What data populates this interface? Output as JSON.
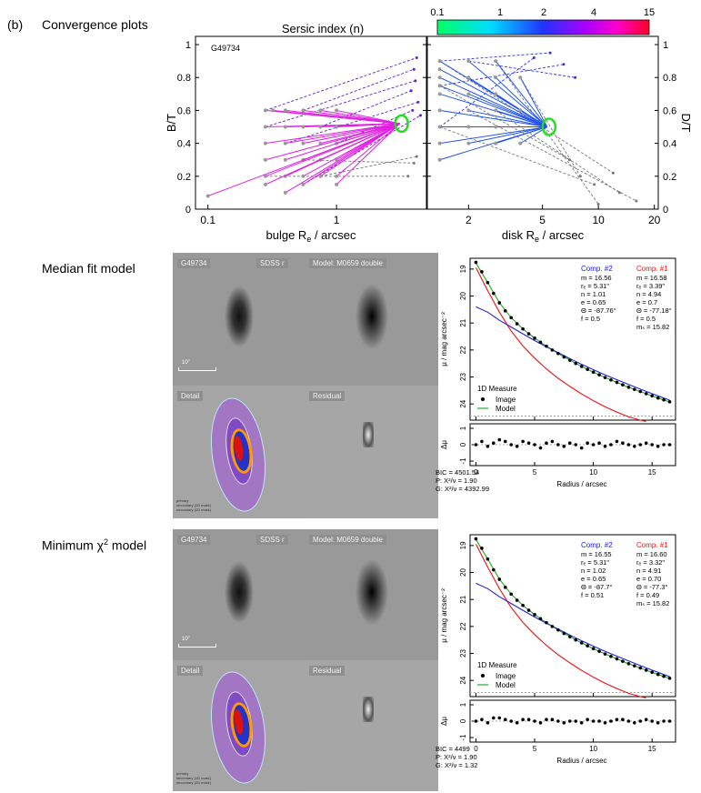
{
  "figure_label": "(b)",
  "sections": {
    "convergence": "Convergence plots",
    "median": "Median fit model",
    "minimum_prefix": "Minimum χ",
    "minimum_sup": "2",
    "minimum_suffix": " model"
  },
  "colorbar": {
    "title": "Sersic index (n)",
    "ticks": [
      "0.1",
      "1",
      "2",
      "4",
      "15"
    ]
  },
  "chart_data": [
    {
      "type": "scatter",
      "panel": "left",
      "galaxy": "G49734",
      "xlabel_main": "bulge R",
      "xlabel_sub": "e",
      "xlabel_tail": " / arcsec",
      "ylabel": "B/T",
      "xscale": "log",
      "xlim": [
        0.08,
        5
      ],
      "ylim": [
        0,
        1.05
      ],
      "xticks": [
        "0.1",
        "1"
      ],
      "yticks": [
        "0",
        "0.2",
        "0.4",
        "0.6",
        "0.8",
        "1"
      ],
      "converged_point": {
        "x": 3.1,
        "y": 0.52
      },
      "start_points": [
        {
          "x": 0.28,
          "y": 0.6
        },
        {
          "x": 0.32,
          "y": 0.6
        },
        {
          "x": 0.4,
          "y": 0.6
        },
        {
          "x": 0.55,
          "y": 0.6
        },
        {
          "x": 0.75,
          "y": 0.6
        },
        {
          "x": 1.0,
          "y": 0.6
        },
        {
          "x": 0.28,
          "y": 0.5
        },
        {
          "x": 0.4,
          "y": 0.5
        },
        {
          "x": 0.55,
          "y": 0.5
        },
        {
          "x": 0.75,
          "y": 0.5
        },
        {
          "x": 1.0,
          "y": 0.5
        },
        {
          "x": 0.28,
          "y": 0.4
        },
        {
          "x": 0.4,
          "y": 0.4
        },
        {
          "x": 0.55,
          "y": 0.4
        },
        {
          "x": 0.75,
          "y": 0.4
        },
        {
          "x": 1.0,
          "y": 0.4
        },
        {
          "x": 0.28,
          "y": 0.3
        },
        {
          "x": 0.4,
          "y": 0.3
        },
        {
          "x": 0.55,
          "y": 0.3
        },
        {
          "x": 0.75,
          "y": 0.3
        },
        {
          "x": 1.0,
          "y": 0.3
        },
        {
          "x": 0.28,
          "y": 0.2
        },
        {
          "x": 0.4,
          "y": 0.2
        },
        {
          "x": 0.55,
          "y": 0.2
        },
        {
          "x": 0.75,
          "y": 0.2
        },
        {
          "x": 1.0,
          "y": 0.2
        },
        {
          "x": 0.28,
          "y": 0.15
        },
        {
          "x": 0.55,
          "y": 0.15
        },
        {
          "x": 1.0,
          "y": 0.15
        },
        {
          "x": 0.1,
          "y": 0.08
        },
        {
          "x": 0.4,
          "y": 0.1
        }
      ],
      "divergent_ends": [
        {
          "x": 4.2,
          "y": 0.92
        },
        {
          "x": 4.0,
          "y": 0.85
        },
        {
          "x": 4.1,
          "y": 0.78
        },
        {
          "x": 3.8,
          "y": 0.72
        },
        {
          "x": 4.3,
          "y": 0.65
        },
        {
          "x": 3.9,
          "y": 0.6
        },
        {
          "x": 4.0,
          "y": 0.28
        },
        {
          "x": 3.6,
          "y": 0.2
        },
        {
          "x": 4.2,
          "y": 0.32
        },
        {
          "x": 4.5,
          "y": 0.57
        }
      ]
    },
    {
      "type": "scatter",
      "panel": "right",
      "xlabel_main": "disk R",
      "xlabel_sub": "e",
      "xlabel_tail": " / arcsec",
      "ylabel": "D/T",
      "xscale": "log",
      "xlim": [
        1.2,
        21
      ],
      "ylim": [
        0,
        1.05
      ],
      "xticks": [
        "2",
        "5",
        "10",
        "20"
      ],
      "yticks": [
        "0",
        "0.2",
        "0.4",
        "0.6",
        "0.8",
        "1"
      ],
      "converged_point": {
        "x": 5.3,
        "y": 0.5
      },
      "start_points": [
        {
          "x": 1.4,
          "y": 0.9
        },
        {
          "x": 1.4,
          "y": 0.85
        },
        {
          "x": 1.4,
          "y": 0.8
        },
        {
          "x": 1.4,
          "y": 0.75
        },
        {
          "x": 1.4,
          "y": 0.7
        },
        {
          "x": 1.4,
          "y": 0.6
        },
        {
          "x": 1.4,
          "y": 0.5
        },
        {
          "x": 1.4,
          "y": 0.4
        },
        {
          "x": 1.4,
          "y": 0.3
        },
        {
          "x": 2.0,
          "y": 0.9
        },
        {
          "x": 2.0,
          "y": 0.8
        },
        {
          "x": 2.0,
          "y": 0.7
        },
        {
          "x": 2.0,
          "y": 0.6
        },
        {
          "x": 2.0,
          "y": 0.5
        },
        {
          "x": 2.0,
          "y": 0.4
        },
        {
          "x": 2.8,
          "y": 0.9
        },
        {
          "x": 2.8,
          "y": 0.8
        },
        {
          "x": 2.8,
          "y": 0.7
        },
        {
          "x": 2.8,
          "y": 0.6
        },
        {
          "x": 2.8,
          "y": 0.5
        },
        {
          "x": 2.8,
          "y": 0.4
        },
        {
          "x": 3.8,
          "y": 0.8
        },
        {
          "x": 3.8,
          "y": 0.6
        },
        {
          "x": 3.8,
          "y": 0.4
        }
      ],
      "divergent_ends": [
        {
          "x": 5.5,
          "y": 0.95
        },
        {
          "x": 6.5,
          "y": 0.88
        },
        {
          "x": 4.5,
          "y": 0.92
        },
        {
          "x": 7.5,
          "y": 0.8
        },
        {
          "x": 16,
          "y": 0.05
        },
        {
          "x": 10,
          "y": 0.03
        },
        {
          "x": 13,
          "y": 0.1
        },
        {
          "x": 8,
          "y": 0.2
        },
        {
          "x": 12,
          "y": 0.22
        },
        {
          "x": 7,
          "y": 0.3
        },
        {
          "x": 9.5,
          "y": 0.15
        }
      ]
    },
    {
      "type": "line",
      "panel": "median-profile",
      "ylabel": "μ / mag arcsec⁻²",
      "residual_ylabel": "Δμ",
      "xlabel": "Radius / arcsec",
      "xlim": [
        -0.5,
        17
      ],
      "ylim": [
        24.6,
        18.6
      ],
      "xticks": [
        "0",
        "5",
        "10",
        "15"
      ],
      "yticks": [
        "19",
        "20",
        "21",
        "22",
        "23",
        "24"
      ],
      "residual_yticks": [
        "1",
        "0",
        "-1"
      ],
      "legend": {
        "title": "1D Measure",
        "image": "Image",
        "model": "Model"
      },
      "series": [
        {
          "name": "Image",
          "x": [
            0,
            0.5,
            1,
            1.5,
            2,
            2.5,
            3,
            3.5,
            4,
            4.5,
            5,
            5.5,
            6,
            6.5,
            7,
            7.5,
            8,
            8.5,
            9,
            9.5,
            10,
            10.5,
            11,
            11.5,
            12,
            12.5,
            13,
            13.5,
            14,
            14.5,
            15,
            15.5,
            16,
            16.5
          ],
          "y": [
            18.75,
            19.1,
            19.5,
            19.9,
            20.25,
            20.55,
            20.8,
            21.03,
            21.22,
            21.4,
            21.56,
            21.71,
            21.86,
            22.0,
            22.13,
            22.26,
            22.38,
            22.5,
            22.61,
            22.72,
            22.82,
            22.92,
            23.02,
            23.11,
            23.2,
            23.29,
            23.38,
            23.46,
            23.54,
            23.62,
            23.7,
            23.78,
            23.85,
            23.92
          ]
        },
        {
          "name": "Model",
          "x": [
            0,
            1,
            2,
            3,
            4,
            5,
            6,
            7,
            8,
            9,
            10,
            11,
            12,
            13,
            14,
            15,
            16,
            16.5
          ],
          "y": [
            18.78,
            19.5,
            20.25,
            20.8,
            21.22,
            21.56,
            21.86,
            22.13,
            22.38,
            22.61,
            22.82,
            23.02,
            23.2,
            23.38,
            23.54,
            23.7,
            23.85,
            23.93
          ]
        },
        {
          "name": "Comp. #1",
          "x": [
            0,
            1,
            2,
            3,
            4,
            5,
            6,
            7,
            8,
            9,
            10,
            11,
            12,
            13,
            14,
            14.5
          ],
          "y": [
            18.95,
            19.8,
            20.6,
            21.3,
            21.85,
            22.3,
            22.7,
            23.05,
            23.35,
            23.63,
            23.88,
            24.1,
            24.3,
            24.48,
            24.6,
            24.65
          ]
        },
        {
          "name": "Comp. #2",
          "x": [
            0,
            1,
            2,
            3,
            4,
            5,
            6,
            7,
            8,
            9,
            10,
            11,
            12,
            13,
            14,
            15,
            16,
            16.5
          ],
          "y": [
            20.4,
            20.6,
            20.9,
            21.15,
            21.4,
            21.65,
            21.88,
            22.1,
            22.32,
            22.53,
            22.73,
            22.92,
            23.1,
            23.28,
            23.45,
            23.62,
            23.78,
            23.86
          ]
        }
      ],
      "residuals": [
        0,
        0.02,
        -0.01,
        0.01,
        0.03,
        0.02,
        0.0,
        -0.01,
        0.02,
        0.01,
        0.0,
        -0.02,
        0.01,
        0.02,
        0.0,
        -0.01,
        0.01,
        0.0,
        -0.02,
        0.01,
        0.0,
        0.01,
        -0.01,
        0.0,
        0.02,
        0.01,
        0.0,
        -0.01,
        0.0,
        0.01,
        0.0,
        -0.01,
        0.0,
        0.0
      ],
      "comp2": {
        "title": "Comp. #2",
        "lines": [
          "m = 16.56",
          "rₑ = 5.31\"",
          "n = 1.01",
          "e = 0.65",
          "Θ = -87.76°",
          "f = 0.5"
        ]
      },
      "comp1": {
        "title": "Comp. #1",
        "lines": [
          "m = 16.58",
          "rₑ = 3.39\"",
          "n = 4.94",
          "e = 0.7",
          "Θ = -77.18°",
          "f = 0.5",
          "mₛ = 15.82"
        ]
      },
      "stats": [
        "BIC = 4501.54",
        "P: X²/ν = 1.90",
        "G: X²/ν = 4392.99"
      ]
    },
    {
      "type": "line",
      "panel": "minimum-profile",
      "ylabel": "μ / mag arcsec⁻²",
      "residual_ylabel": "Δμ",
      "xlabel": "Radius / arcsec",
      "xlim": [
        -0.5,
        17
      ],
      "ylim": [
        24.6,
        18.6
      ],
      "xticks": [
        "0",
        "5",
        "10",
        "15"
      ],
      "yticks": [
        "19",
        "20",
        "21",
        "22",
        "23",
        "24"
      ],
      "residual_yticks": [
        "1",
        "0",
        "-1"
      ],
      "legend": {
        "title": "1D Measure",
        "image": "Image",
        "model": "Model"
      },
      "series": [
        {
          "name": "Image",
          "x": [
            0,
            0.5,
            1,
            1.5,
            2,
            2.5,
            3,
            3.5,
            4,
            4.5,
            5,
            5.5,
            6,
            6.5,
            7,
            7.5,
            8,
            8.5,
            9,
            9.5,
            10,
            10.5,
            11,
            11.5,
            12,
            12.5,
            13,
            13.5,
            14,
            14.5,
            15,
            15.5,
            16,
            16.5
          ],
          "y": [
            18.75,
            19.1,
            19.5,
            19.9,
            20.25,
            20.55,
            20.8,
            21.03,
            21.22,
            21.4,
            21.56,
            21.71,
            21.86,
            22.0,
            22.13,
            22.26,
            22.38,
            22.5,
            22.61,
            22.72,
            22.82,
            22.92,
            23.02,
            23.11,
            23.2,
            23.29,
            23.38,
            23.46,
            23.54,
            23.62,
            23.7,
            23.78,
            23.85,
            23.92
          ]
        },
        {
          "name": "Model",
          "x": [
            0,
            1,
            2,
            3,
            4,
            5,
            6,
            7,
            8,
            9,
            10,
            11,
            12,
            13,
            14,
            15,
            16,
            16.5
          ],
          "y": [
            18.78,
            19.5,
            20.25,
            20.8,
            21.22,
            21.56,
            21.86,
            22.13,
            22.38,
            22.61,
            22.82,
            23.02,
            23.2,
            23.38,
            23.54,
            23.7,
            23.85,
            23.93
          ]
        },
        {
          "name": "Comp. #1",
          "x": [
            0,
            1,
            2,
            3,
            4,
            5,
            6,
            7,
            8,
            9,
            10,
            11,
            12,
            13,
            14,
            14.5
          ],
          "y": [
            18.95,
            19.8,
            20.6,
            21.3,
            21.85,
            22.3,
            22.7,
            23.05,
            23.35,
            23.63,
            23.88,
            24.1,
            24.3,
            24.48,
            24.6,
            24.65
          ]
        },
        {
          "name": "Comp. #2",
          "x": [
            0,
            1,
            2,
            3,
            4,
            5,
            6,
            7,
            8,
            9,
            10,
            11,
            12,
            13,
            14,
            15,
            16,
            16.5
          ],
          "y": [
            20.4,
            20.6,
            20.9,
            21.15,
            21.4,
            21.65,
            21.88,
            22.1,
            22.32,
            22.53,
            22.73,
            22.92,
            23.1,
            23.28,
            23.45,
            23.62,
            23.78,
            23.86
          ]
        }
      ],
      "residuals": [
        0,
        0.01,
        -0.01,
        0.02,
        0.02,
        0.01,
        0.0,
        -0.01,
        0.01,
        0.01,
        0.0,
        -0.01,
        0.01,
        0.01,
        0.0,
        -0.01,
        0.0,
        0.0,
        -0.01,
        0.01,
        0.0,
        0.0,
        -0.01,
        0.0,
        0.01,
        0.01,
        0.0,
        -0.01,
        0.0,
        0.01,
        0.0,
        -0.01,
        0.0,
        0.0
      ],
      "comp2": {
        "title": "Comp. #2",
        "lines": [
          "m = 16.55",
          "rₑ = 5.31\"",
          "n = 1.02",
          "e = 0.65",
          "Θ = -87.7°",
          "f = 0.51"
        ]
      },
      "comp1": {
        "title": "Comp. #1",
        "lines": [
          "m = 16.60",
          "rₑ = 3.32\"",
          "n = 4.91",
          "e = 0.70",
          "Θ = -77.3°",
          "f = 0.49",
          "mₛ = 15.82"
        ]
      },
      "stats": [
        "BIC = 4499",
        "P: X²/ν = 1.90",
        "G: X²/ν = 1.32"
      ]
    }
  ],
  "image_panels": {
    "galaxy": "G49734",
    "band": "SDSS r",
    "model": "Model: M0659 double",
    "detail": "Detail",
    "residual": "Residual",
    "scale": "10\"",
    "detail_legend": [
      "primary",
      "secondary (1D mask)",
      "secondary (2D mask)"
    ]
  },
  "colors": {
    "bulge_arrows": "#e020e0",
    "disk_arrows": "#2255ee",
    "divergent": "#777777",
    "converged_marker": "#22dd22",
    "comp1": "#ee1111",
    "comp2": "#2222cc",
    "model": "#22aa22"
  }
}
